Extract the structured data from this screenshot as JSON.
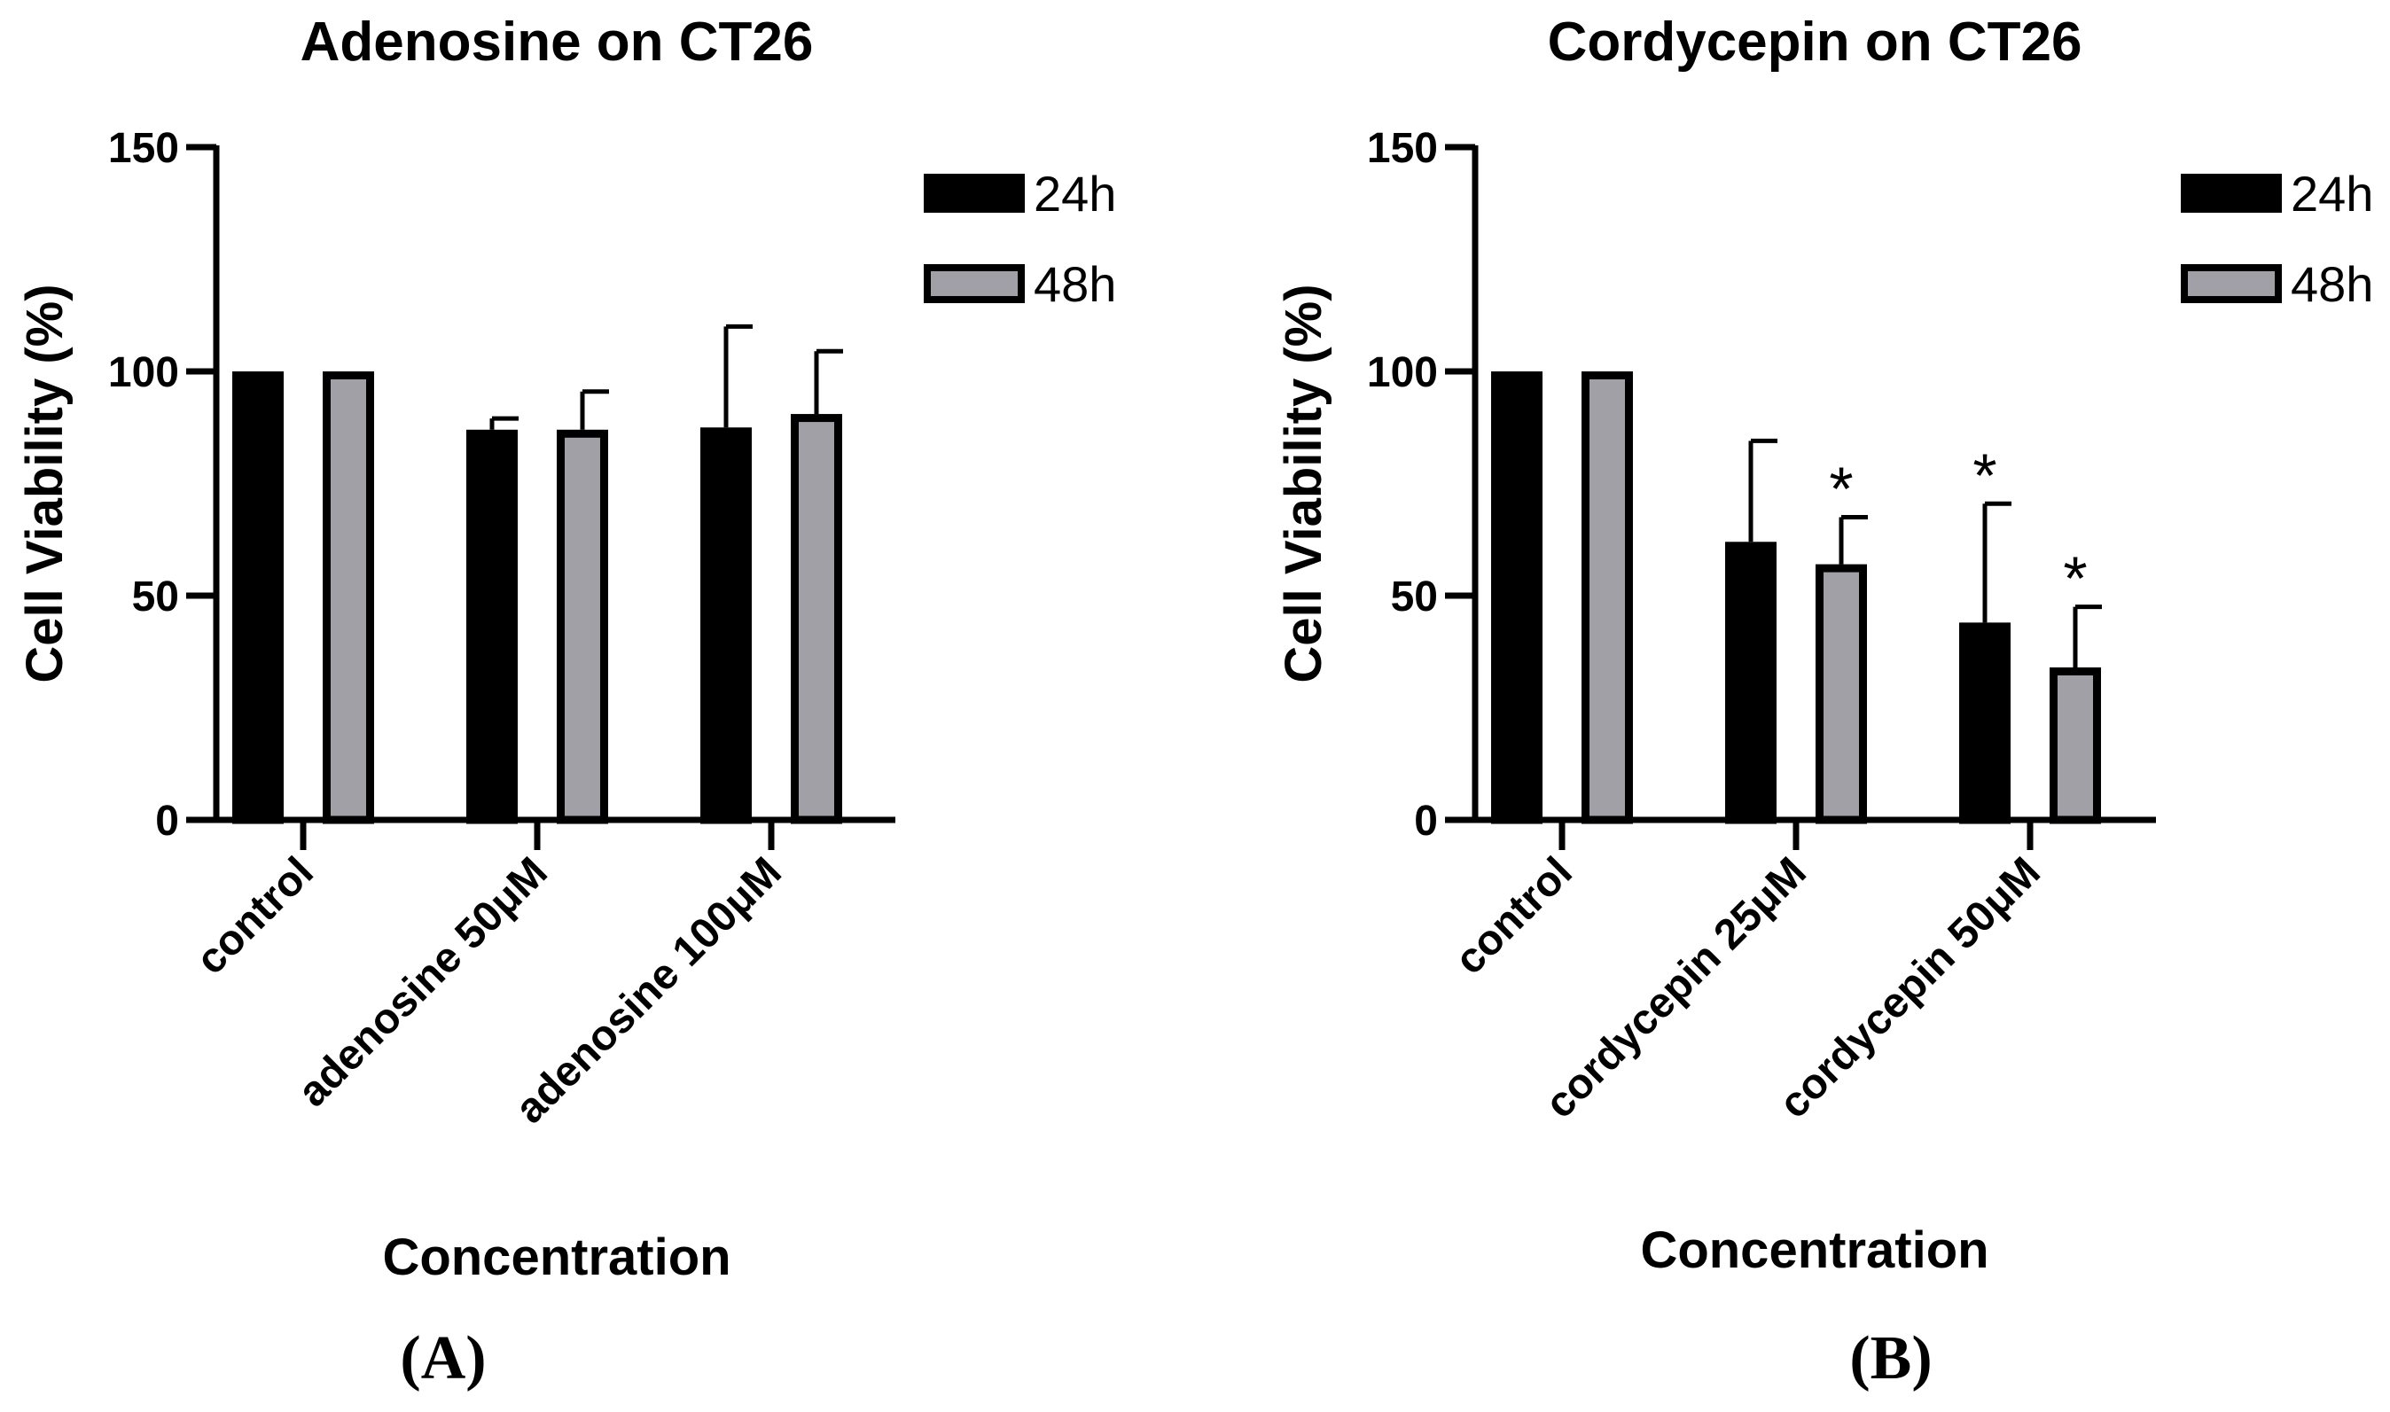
{
  "chart_data": [
    {
      "type": "bar",
      "title": "Adenosine on CT26",
      "xlabel": "Concentration",
      "ylabel": "Cell Viability (%)",
      "ylim": [
        0,
        150
      ],
      "yticks": [
        0,
        50,
        100,
        150
      ],
      "categories": [
        "control",
        "adenosine 50μM",
        "adenosine 100μM"
      ],
      "series": [
        {
          "name": "24h",
          "color": "#000000",
          "values": [
            100,
            87,
            87.5
          ],
          "errors": [
            0,
            2.5,
            22.5
          ],
          "significance": [
            "",
            "",
            ""
          ]
        },
        {
          "name": "48h",
          "color": "#a0a0a6",
          "values": [
            100,
            87,
            90.5
          ],
          "errors": [
            0,
            8.5,
            14
          ],
          "significance": [
            "",
            "",
            ""
          ]
        }
      ],
      "legend": "top-right",
      "panel_label": "(A)"
    },
    {
      "type": "bar",
      "title": "Cordycepin on CT26",
      "xlabel": "Concentration",
      "ylabel": "Cell Viability (%)",
      "ylim": [
        0,
        150
      ],
      "yticks": [
        0,
        50,
        100,
        150
      ],
      "categories": [
        "control",
        "cordycepin 25μM",
        "cordycepin 50μM"
      ],
      "series": [
        {
          "name": "24h",
          "color": "#000000",
          "values": [
            100,
            62,
            44
          ],
          "errors": [
            0,
            22.5,
            26.5
          ],
          "significance": [
            "",
            "",
            "*"
          ]
        },
        {
          "name": "48h",
          "color": "#a0a0a6",
          "values": [
            100,
            57,
            34
          ],
          "errors": [
            0,
            10.5,
            13.5
          ],
          "significance": [
            "",
            "*",
            "*"
          ]
        }
      ],
      "legend": "top-right",
      "panel_label": "(B)"
    }
  ]
}
